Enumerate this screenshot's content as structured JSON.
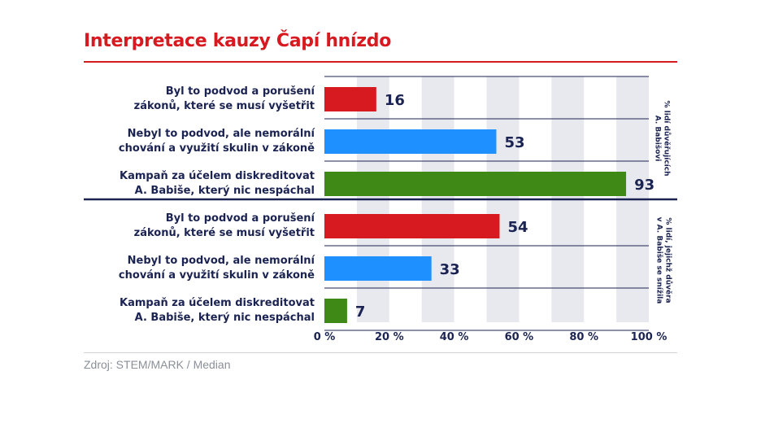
{
  "header": {
    "title": "Interpretace kauzy Čapí hnízdo"
  },
  "footer": {
    "source": "Zdroj: STEM/MARK / Median"
  },
  "colors": {
    "title": "#d71920",
    "navy": "#1b2352",
    "podvod": "#d71920",
    "nemoralni": "#1e90ff",
    "kampan": "#3f8a16",
    "band": "#e8e9ee"
  },
  "chart_data": {
    "type": "bar",
    "orientation": "horizontal",
    "xlim": [
      0,
      100
    ],
    "x_ticks": [
      "0 %",
      "20 %",
      "40 %",
      "60 %",
      "80 %",
      "100 %"
    ],
    "groups": [
      {
        "label": "% lidí důvěřujících A. Babišovi",
        "bars": [
          {
            "category": "Byl to podvod a porušení zákonů, které se musí vyšetřit",
            "value": 16,
            "color": "#d71920"
          },
          {
            "category": "Nebyl to podvod, ale nemorální chování a využití skulin v zákoně",
            "value": 53,
            "color": "#1e90ff"
          },
          {
            "category": "Kampaň za účelem diskreditovat A. Babiše, který nic nespáchal",
            "value": 93,
            "color": "#3f8a16"
          }
        ]
      },
      {
        "label": "% lidí, jejichž důvěra v A. Babiše se snížila",
        "bars": [
          {
            "category": "Byl to podvod a porušení zákonů, které se musí vyšetřit",
            "value": 54,
            "color": "#d71920"
          },
          {
            "category": "Nebyl to podvod, ale nemorální chování a využití skulin v zákoně",
            "value": 33,
            "color": "#1e90ff"
          },
          {
            "category": "Kampaň za účelem diskreditovat A. Babiše, který nic nespáchal",
            "value": 7,
            "color": "#3f8a16"
          }
        ]
      }
    ],
    "category_label_lines": [
      [
        "Byl to podvod a porušení",
        "zákonů, které se musí vyšetřit"
      ],
      [
        "Nebyl to podvod, ale nemorální",
        "chování a využití skulin v zákoně"
      ],
      [
        "Kampaň za účelem diskreditovat",
        "A. Babiše, který nic nespáchal"
      ]
    ],
    "group_label_lines": [
      [
        "% lidí důvěřujících",
        "A. Babišovi"
      ],
      [
        "% lidí, jejichž důvěra",
        "v A. Babiše se snížila"
      ]
    ]
  }
}
